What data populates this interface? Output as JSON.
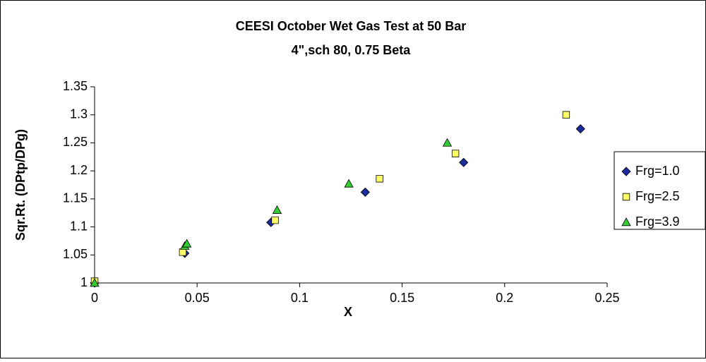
{
  "chart_data": {
    "type": "scatter",
    "title": "CEESI October Wet Gas Test at 50 Bar",
    "subtitle": "4\",sch 80, 0.75 Beta",
    "x_label": "X",
    "y_label": "Sqr.Rt. (DPtp/DPg)",
    "xlim": [
      0,
      0.25
    ],
    "xticks": [
      0,
      0.05,
      0.1,
      0.15,
      0.2,
      0.25
    ],
    "ylim": [
      1,
      1.35
    ],
    "yticks": [
      1,
      1.05,
      1.1,
      1.15,
      1.2,
      1.25,
      1.3,
      1.35
    ],
    "legend": "right",
    "series": [
      {
        "name": "Frg=1.0",
        "color": "#1c2c9c",
        "marker": "diamond",
        "x": [
          0,
          0.044,
          0.086,
          0.132,
          0.18,
          0.237
        ],
        "values": [
          1.0,
          1.053,
          1.108,
          1.162,
          1.215,
          1.275
        ]
      },
      {
        "name": "Frg=2.5",
        "color": "#ffff66",
        "marker": "square",
        "x": [
          0,
          0.043,
          0.088,
          0.139,
          0.176,
          0.23
        ],
        "values": [
          1.003,
          1.055,
          1.112,
          1.186,
          1.231,
          1.3
        ]
      },
      {
        "name": "Frg=3.9",
        "color": "#33cc33",
        "marker": "triangle",
        "x": [
          0,
          0.044,
          0.045,
          0.089,
          0.124,
          0.172
        ],
        "values": [
          1.0,
          1.066,
          1.07,
          1.13,
          1.177,
          1.25
        ]
      }
    ]
  }
}
